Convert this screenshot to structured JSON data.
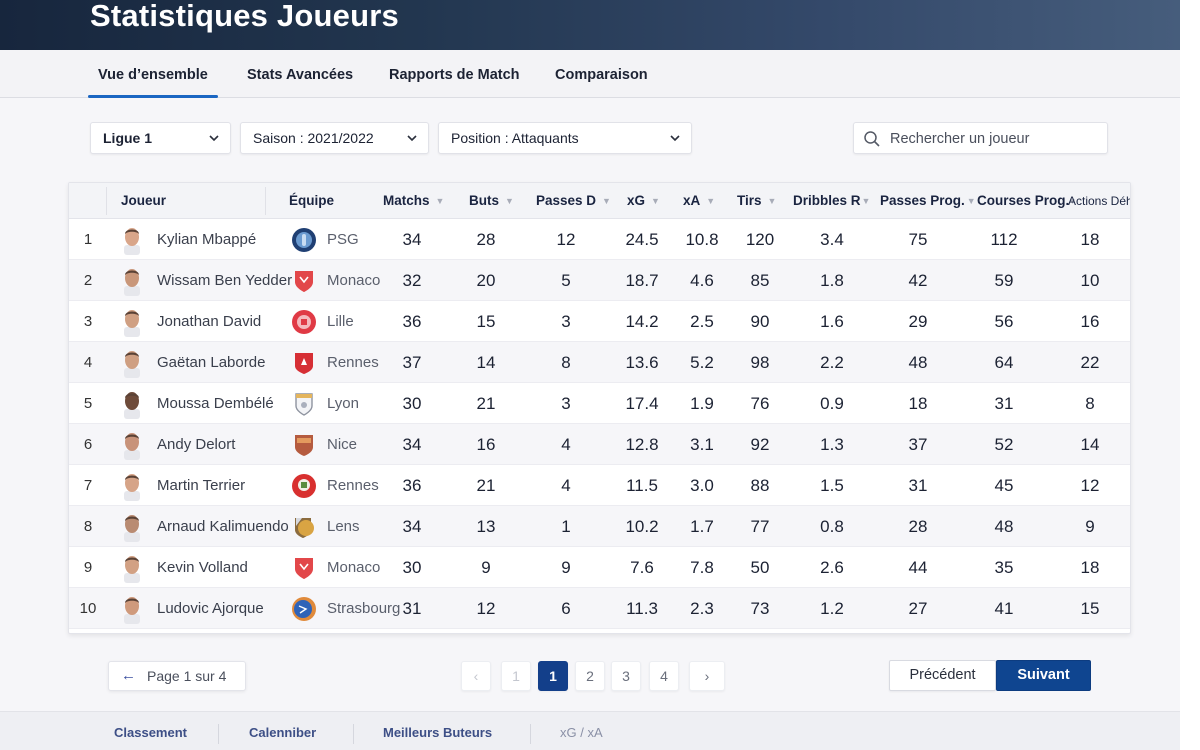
{
  "header": {
    "title": "Statistiques Joueurs"
  },
  "tabs": [
    {
      "label": "Vue d’ensemble",
      "active": true
    },
    {
      "label": "Stats Avancées",
      "active": false
    },
    {
      "label": "Rapports de Match",
      "active": false
    },
    {
      "label": "Comparaison",
      "active": false
    }
  ],
  "filters": {
    "league": {
      "value": "Ligue 1"
    },
    "season": {
      "value": "Saison : 2021/2022"
    },
    "position": {
      "value": "Position : Attaquants"
    },
    "search": {
      "placeholder": "Rechercher un joueur",
      "value": ""
    }
  },
  "table": {
    "columns": [
      {
        "key": "rank",
        "label": ""
      },
      {
        "key": "player",
        "label": "Joueur"
      },
      {
        "key": "team",
        "label": "Équipe"
      },
      {
        "key": "matches",
        "label": "Matchs",
        "sortable": true
      },
      {
        "key": "goals",
        "label": "Buts",
        "sortable": true
      },
      {
        "key": "assists",
        "label": "Passes D",
        "sortable": true
      },
      {
        "key": "xg",
        "label": "xG",
        "sortable": true
      },
      {
        "key": "xa",
        "label": "xA",
        "sortable": true
      },
      {
        "key": "shots",
        "label": "Tirs",
        "sortable": true
      },
      {
        "key": "dribbles",
        "label": "Dribbles R",
        "sortable": true
      },
      {
        "key": "prog_passes",
        "label": "Passes Prog.",
        "sortable": true
      },
      {
        "key": "prog_carries",
        "label": "Courses Prog.",
        "sortable": true
      },
      {
        "key": "def_actions",
        "label": "Actions Déh",
        "sortable": false
      }
    ],
    "rows": [
      {
        "rank": "1",
        "player": "Kylian Mbappé",
        "team": "PSG",
        "crest": "psg",
        "matches": "34",
        "goals": "28",
        "assists": "12",
        "xg": "24.5",
        "xa": "10.8",
        "shots": "120",
        "dribbles": "3.4",
        "prog_passes": "75",
        "prog_carries": "112",
        "def_actions": "18"
      },
      {
        "rank": "2",
        "player": "Wissam Ben Yedder",
        "team": "Monaco",
        "crest": "monaco",
        "matches": "32",
        "goals": "20",
        "assists": "5",
        "xg": "18.7",
        "xa": "4.6",
        "shots": "85",
        "dribbles": "1.8",
        "prog_passes": "42",
        "prog_carries": "59",
        "def_actions": "10"
      },
      {
        "rank": "3",
        "player": "Jonathan David",
        "team": "Lille",
        "crest": "lille",
        "matches": "36",
        "goals": "15",
        "assists": "3",
        "xg": "14.2",
        "xa": "2.5",
        "shots": "90",
        "dribbles": "1.6",
        "prog_passes": "29",
        "prog_carries": "56",
        "def_actions": "16"
      },
      {
        "rank": "4",
        "player": "Gaëtan Laborde",
        "team": "Rennes",
        "crest": "rennes",
        "matches": "37",
        "goals": "14",
        "assists": "8",
        "xg": "13.6",
        "xa": "5.2",
        "shots": "98",
        "dribbles": "2.2",
        "prog_passes": "48",
        "prog_carries": "64",
        "def_actions": "22"
      },
      {
        "rank": "5",
        "player": "Moussa Dembélé",
        "team": "Lyon",
        "crest": "lyon",
        "matches": "30",
        "goals": "21",
        "assists": "3",
        "xg": "17.4",
        "xa": "1.9",
        "shots": "76",
        "dribbles": "0.9",
        "prog_passes": "18",
        "prog_carries": "31",
        "def_actions": "8"
      },
      {
        "rank": "6",
        "player": "Andy Delort",
        "team": "Nice",
        "crest": "nice",
        "matches": "34",
        "goals": "16",
        "assists": "4",
        "xg": "12.8",
        "xa": "3.1",
        "shots": "92",
        "dribbles": "1.3",
        "prog_passes": "37",
        "prog_carries": "52",
        "def_actions": "14"
      },
      {
        "rank": "7",
        "player": "Martin Terrier",
        "team": "Rennes",
        "crest": "rennes2",
        "matches": "36",
        "goals": "21",
        "assists": "4",
        "xg": "11.5",
        "xa": "3.0",
        "shots": "88",
        "dribbles": "1.5",
        "prog_passes": "31",
        "prog_carries": "45",
        "def_actions": "12"
      },
      {
        "rank": "8",
        "player": "Arnaud Kalimuendo",
        "team": "Lens",
        "crest": "lens",
        "matches": "34",
        "goals": "13",
        "assists": "1",
        "xg": "10.2",
        "xa": "1.7",
        "shots": "77",
        "dribbles": "0.8",
        "prog_passes": "28",
        "prog_carries": "48",
        "def_actions": "9"
      },
      {
        "rank": "9",
        "player": "Kevin Volland",
        "team": "Monaco",
        "crest": "monaco",
        "matches": "30",
        "goals": "9",
        "assists": "9",
        "xg": "7.6",
        "xa": "7.8",
        "shots": "50",
        "dribbles": "2.6",
        "prog_passes": "44",
        "prog_carries": "35",
        "def_actions": "18"
      },
      {
        "rank": "10",
        "player": "Ludovic Ajorque",
        "team": "Strasbourg",
        "crest": "strasbourg",
        "matches": "31",
        "goals": "12",
        "assists": "6",
        "xg": "11.3",
        "xa": "2.3",
        "shots": "73",
        "dribbles": "1.2",
        "prog_passes": "27",
        "prog_carries": "41",
        "def_actions": "15"
      }
    ]
  },
  "pagination": {
    "info": "Page 1 sur 4",
    "info_icon": "arrow-left-icon",
    "prev_icon": "‹",
    "next_icon": "›",
    "pages": [
      "1",
      "1",
      "2",
      "3",
      "4"
    ],
    "current": "1",
    "prev_label": "Précédent",
    "next_label": "Suivant"
  },
  "footer": {
    "links": [
      "Classement",
      "Calenniber",
      "Meilleurs Buteurs",
      "xG / xA"
    ]
  },
  "colors": {
    "header_start": "#17263d",
    "header_end": "#465d7c",
    "accent": "#1a66c2",
    "primary_button": "#0f4590",
    "page_active": "#133f8a"
  }
}
